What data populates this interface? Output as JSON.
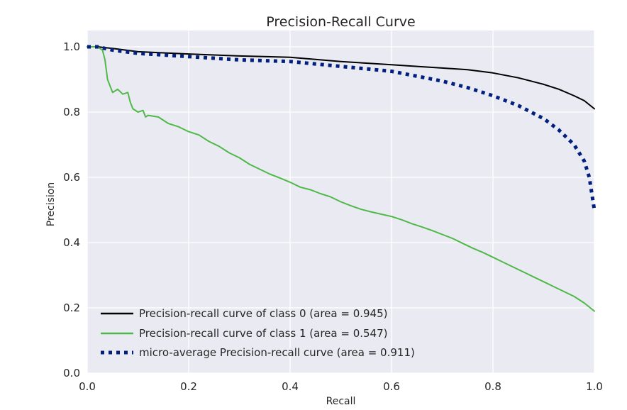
{
  "chart_data": {
    "type": "line",
    "title": "Precision-Recall Curve",
    "xlabel": "Recall",
    "ylabel": "Precision",
    "xlim": [
      0.0,
      1.0
    ],
    "ylim": [
      0.0,
      1.05
    ],
    "xticks": [
      "0.0",
      "0.2",
      "0.4",
      "0.6",
      "0.8",
      "1.0"
    ],
    "yticks": [
      "0.0",
      "0.2",
      "0.4",
      "0.6",
      "0.8",
      "1.0"
    ],
    "grid": true,
    "legend_position": "lower-left",
    "colors": {
      "plot_background": "#eaeaf2",
      "grid": "#ffffff"
    },
    "series": [
      {
        "name": "Precision-recall curve of class 0 (area = 0.945)",
        "color": "#000000",
        "style": "solid",
        "x": [
          0.0,
          0.02,
          0.05,
          0.1,
          0.2,
          0.3,
          0.4,
          0.5,
          0.6,
          0.65,
          0.7,
          0.75,
          0.8,
          0.85,
          0.9,
          0.93,
          0.96,
          0.98,
          1.0
        ],
        "y": [
          1.0,
          1.0,
          0.995,
          0.985,
          0.978,
          0.972,
          0.968,
          0.955,
          0.945,
          0.94,
          0.935,
          0.93,
          0.92,
          0.905,
          0.885,
          0.87,
          0.85,
          0.835,
          0.81
        ]
      },
      {
        "name": "Precision-recall curve of class 1 (area = 0.547)",
        "color": "#4fb848",
        "style": "solid",
        "x": [
          0.0,
          0.02,
          0.03,
          0.035,
          0.04,
          0.045,
          0.05,
          0.06,
          0.07,
          0.08,
          0.085,
          0.09,
          0.1,
          0.11,
          0.115,
          0.12,
          0.14,
          0.16,
          0.18,
          0.2,
          0.22,
          0.24,
          0.26,
          0.28,
          0.3,
          0.32,
          0.34,
          0.36,
          0.38,
          0.4,
          0.42,
          0.44,
          0.46,
          0.48,
          0.5,
          0.52,
          0.54,
          0.56,
          0.58,
          0.6,
          0.62,
          0.64,
          0.66,
          0.68,
          0.7,
          0.72,
          0.74,
          0.76,
          0.78,
          0.8,
          0.82,
          0.84,
          0.86,
          0.88,
          0.9,
          0.92,
          0.94,
          0.96,
          0.98,
          1.0
        ],
        "y": [
          1.0,
          1.0,
          0.99,
          0.96,
          0.9,
          0.88,
          0.86,
          0.87,
          0.855,
          0.86,
          0.83,
          0.81,
          0.8,
          0.805,
          0.785,
          0.79,
          0.785,
          0.765,
          0.755,
          0.74,
          0.73,
          0.71,
          0.695,
          0.675,
          0.66,
          0.64,
          0.625,
          0.61,
          0.598,
          0.585,
          0.57,
          0.562,
          0.55,
          0.54,
          0.525,
          0.513,
          0.502,
          0.494,
          0.487,
          0.48,
          0.47,
          0.458,
          0.448,
          0.437,
          0.425,
          0.413,
          0.398,
          0.383,
          0.37,
          0.355,
          0.34,
          0.325,
          0.31,
          0.295,
          0.28,
          0.265,
          0.25,
          0.235,
          0.215,
          0.19
        ]
      },
      {
        "name": "micro-average Precision-recall curve (area = 0.911)",
        "color": "#001f7f",
        "style": "dotted",
        "x": [
          0.0,
          0.02,
          0.05,
          0.1,
          0.2,
          0.3,
          0.4,
          0.5,
          0.6,
          0.65,
          0.7,
          0.75,
          0.8,
          0.85,
          0.9,
          0.93,
          0.96,
          0.98,
          0.99,
          1.0
        ],
        "y": [
          1.0,
          1.0,
          0.99,
          0.98,
          0.97,
          0.96,
          0.955,
          0.94,
          0.925,
          0.91,
          0.895,
          0.875,
          0.85,
          0.82,
          0.78,
          0.745,
          0.7,
          0.65,
          0.6,
          0.5
        ]
      }
    ]
  }
}
